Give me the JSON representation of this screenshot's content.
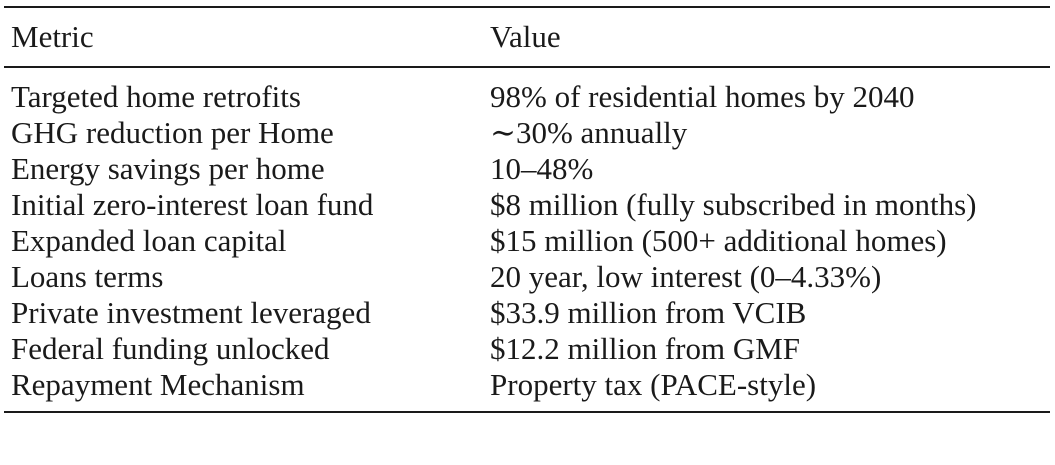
{
  "table": {
    "headers": {
      "metric": "Metric",
      "value": "Value"
    },
    "rows": [
      {
        "metric": "Targeted home retrofits",
        "value": "98% of residential homes by 2040"
      },
      {
        "metric": "GHG reduction per Home",
        "value": "∼30% annually"
      },
      {
        "metric": "Energy savings per home",
        "value": "10–48%"
      },
      {
        "metric": "Initial zero-interest loan fund",
        "value": "$8 million (fully subscribed in months)"
      },
      {
        "metric": "Expanded loan capital",
        "value": "$15 million (500+ additional homes)"
      },
      {
        "metric": "Loans terms",
        "value": "20 year, low interest (0–4.33%)"
      },
      {
        "metric": "Private investment leveraged",
        "value": "$33.9 million from VCIB"
      },
      {
        "metric": "Federal funding unlocked",
        "value": "$12.2 million from GMF"
      },
      {
        "metric": "Repayment Mechanism",
        "value": "Property tax (PACE-style)"
      }
    ]
  }
}
